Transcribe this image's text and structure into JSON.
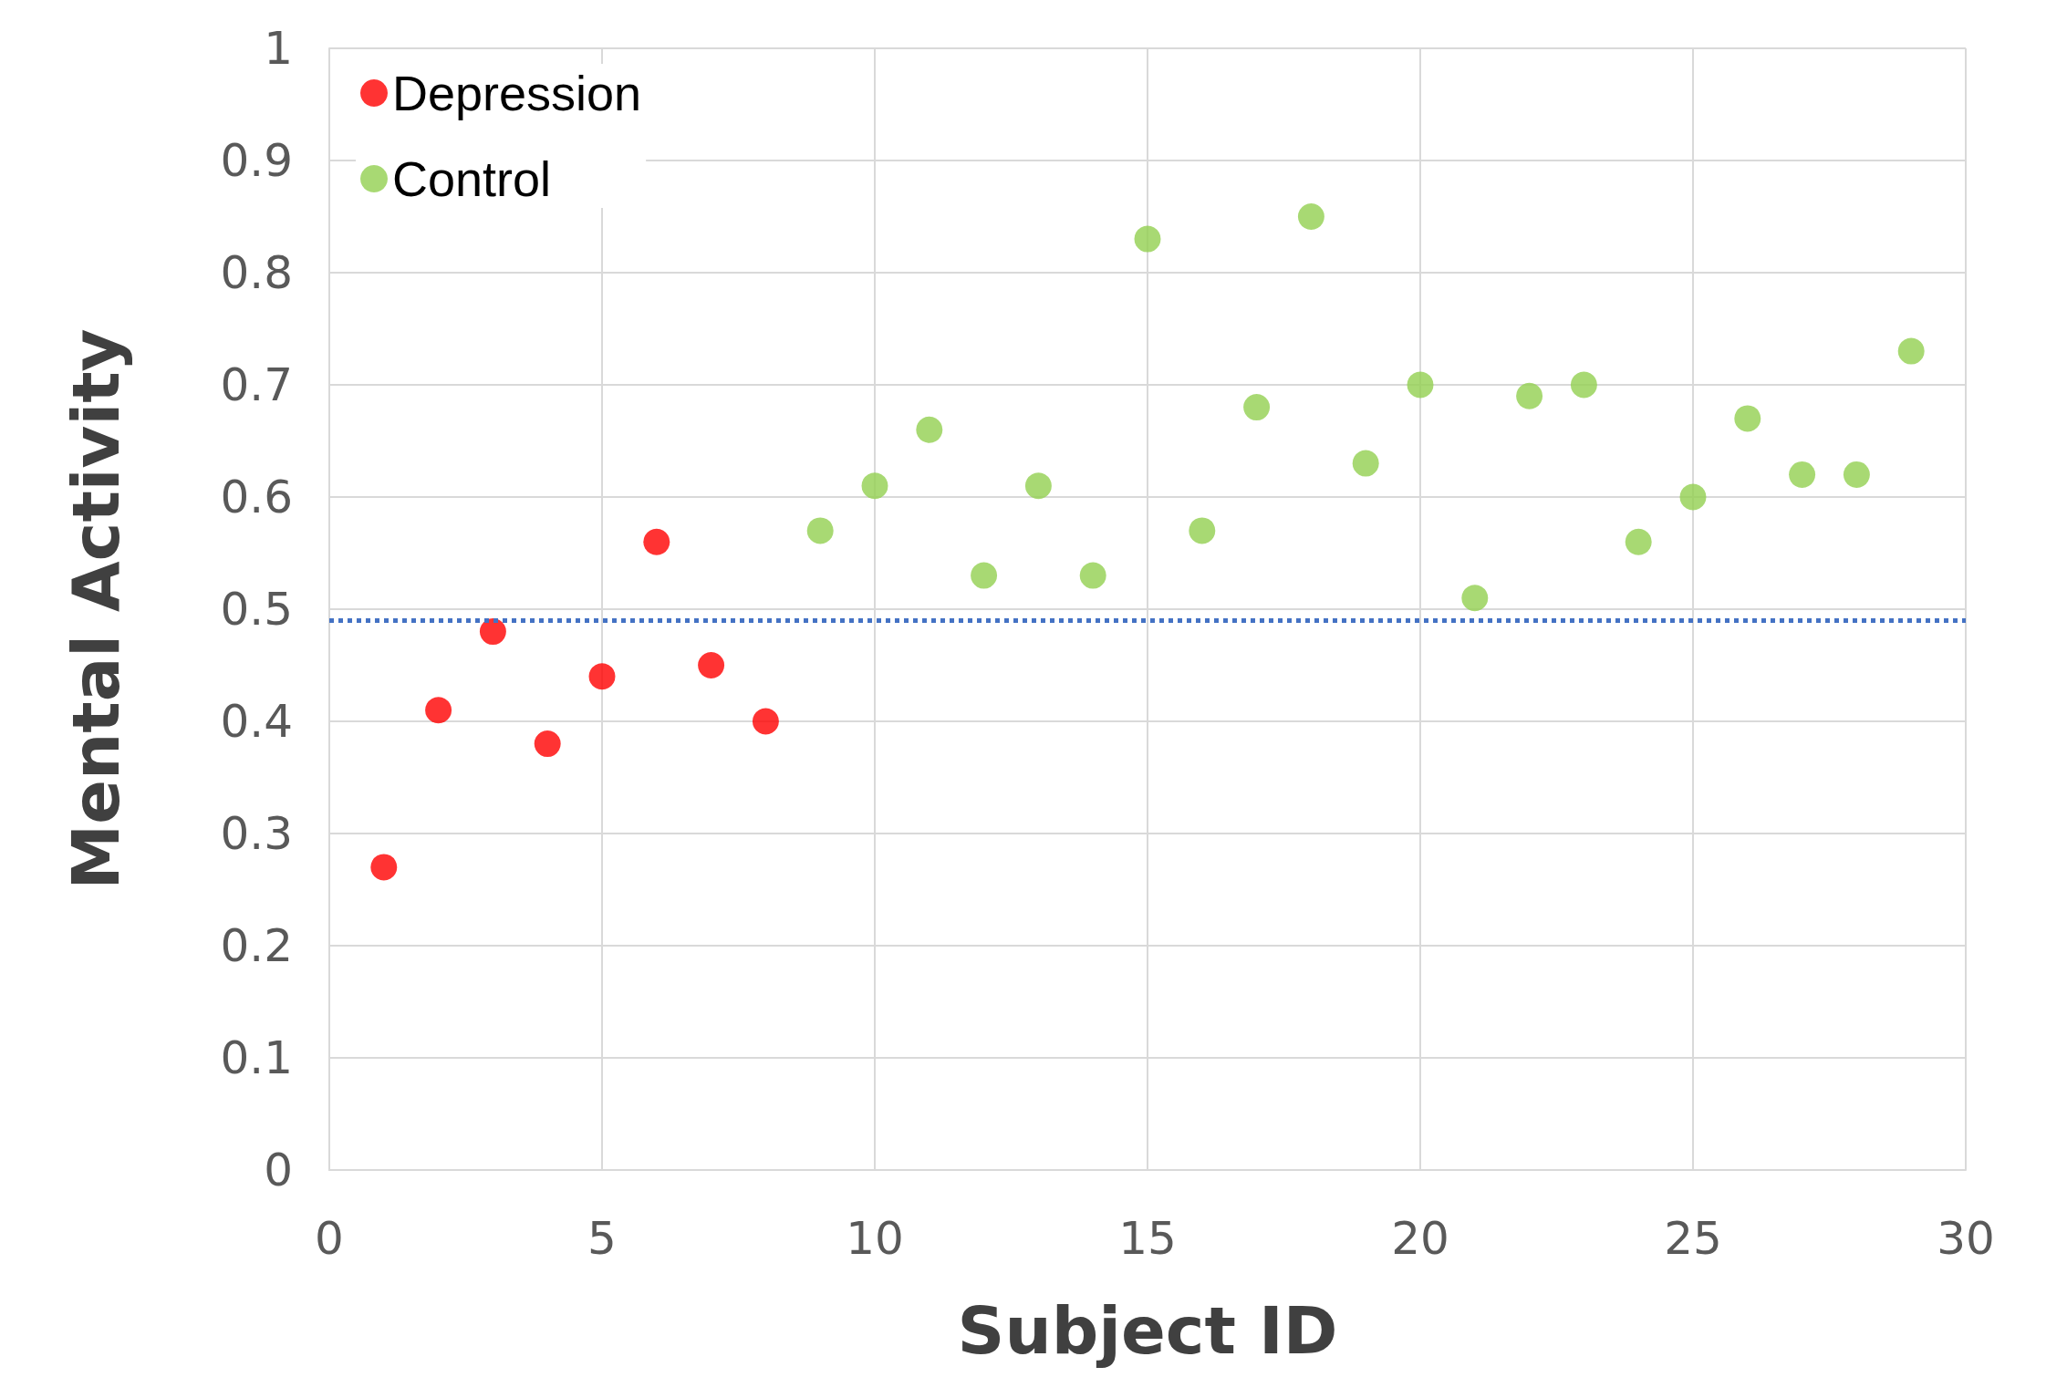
{
  "chart_data": {
    "type": "scatter",
    "xlabel": "Subject ID",
    "ylabel": "Mental Activity",
    "xlim": [
      0,
      30
    ],
    "xticks": [
      0,
      5,
      10,
      15,
      20,
      25,
      30
    ],
    "ylim": [
      0,
      1
    ],
    "yticks": [
      0,
      0.1,
      0.2,
      0.3,
      0.4,
      0.5,
      0.6,
      0.7,
      0.8,
      0.9,
      1
    ],
    "grid": true,
    "legend": "top left",
    "marker": "circle",
    "series": [
      {
        "name": "Depression",
        "color": "#ff0000",
        "x": [
          1,
          2,
          3,
          4,
          5,
          6,
          7,
          8
        ],
        "values": [
          0.27,
          0.41,
          0.48,
          0.38,
          0.44,
          0.56,
          0.45,
          0.4
        ]
      },
      {
        "name": "Control",
        "color": "#92d050",
        "x": [
          9,
          10,
          11,
          12,
          13,
          14,
          15,
          16,
          17,
          18,
          19,
          20,
          21,
          22,
          23,
          24,
          25,
          26,
          27,
          28,
          29
        ],
        "values": [
          0.57,
          0.61,
          0.66,
          0.53,
          0.61,
          0.53,
          0.83,
          0.57,
          0.68,
          0.85,
          0.63,
          0.7,
          0.51,
          0.69,
          0.7,
          0.56,
          0.6,
          0.67,
          0.62,
          0.62,
          0.73
        ]
      }
    ],
    "ref_lines": [
      {
        "axis": "y",
        "value": 0.49,
        "color": "#4472c4",
        "line_style": "dotted"
      }
    ]
  }
}
